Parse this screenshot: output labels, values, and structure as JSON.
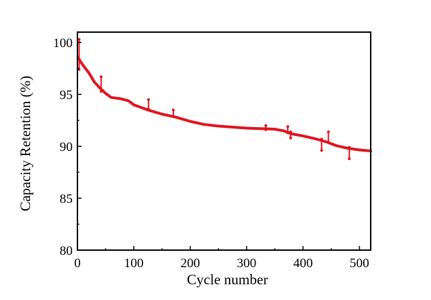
{
  "chart_data": {
    "type": "line",
    "title": "",
    "xlabel": "Cycle number",
    "ylabel": "Capacity Retention  (%)",
    "xlim": [
      0,
      520
    ],
    "ylim": [
      80,
      101
    ],
    "xticks": [
      0,
      100,
      200,
      300,
      400,
      500
    ],
    "yticks": [
      80,
      85,
      90,
      95,
      100
    ],
    "grid": false,
    "legend": "none",
    "series_color": "#e0141e",
    "series": [
      {
        "x": [
          1,
          5,
          10,
          20,
          30,
          40,
          50,
          60,
          75,
          90,
          100,
          110,
          125,
          150,
          175,
          200,
          225,
          250,
          275,
          300,
          325,
          350,
          365,
          380,
          400,
          420,
          440,
          460,
          480,
          500,
          520
        ],
        "y": [
          98.6,
          98.2,
          97.8,
          97.1,
          96.2,
          95.6,
          95.1,
          94.7,
          94.6,
          94.4,
          94.0,
          93.8,
          93.5,
          93.1,
          92.8,
          92.4,
          92.1,
          91.95,
          91.85,
          91.75,
          91.7,
          91.65,
          91.5,
          91.2,
          91.0,
          90.75,
          90.45,
          90.05,
          89.8,
          89.65,
          89.55
        ]
      }
    ],
    "spikes": [
      {
        "x": 3,
        "top": 100.3,
        "bottom": 97.4
      },
      {
        "x": 42,
        "top": 96.7,
        "bottom": 95.3
      },
      {
        "x": 126,
        "top": 94.5,
        "bottom": 93.6
      },
      {
        "x": 170,
        "top": 93.5,
        "bottom": 92.9
      },
      {
        "x": 334,
        "top": 92.0,
        "bottom": 91.6
      },
      {
        "x": 373,
        "top": 91.9,
        "bottom": 91.3
      },
      {
        "x": 378,
        "top": 91.4,
        "bottom": 90.8
      },
      {
        "x": 433,
        "top": 90.7,
        "bottom": 89.6
      },
      {
        "x": 445,
        "top": 91.4,
        "bottom": 90.4
      },
      {
        "x": 482,
        "top": 89.9,
        "bottom": 88.8
      }
    ]
  }
}
